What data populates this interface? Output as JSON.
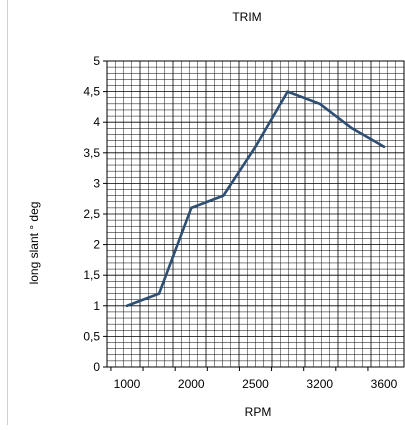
{
  "chart_data": {
    "type": "line",
    "title": "TRIM",
    "xlabel": "RPM",
    "ylabel": "long slant ° deg",
    "x_tick_labels": [
      "1000",
      "2000",
      "2500",
      "3200",
      "3600"
    ],
    "y_tick_labels": [
      "0",
      "0,5",
      "1",
      "1,5",
      "2",
      "2,5",
      "3",
      "3,5",
      "4",
      "4,5",
      "5"
    ],
    "ylim": [
      0,
      5
    ],
    "grid": true,
    "legend": "none",
    "series": [
      {
        "values": [
          1.0,
          1.2,
          2.6,
          2.8,
          3.6,
          4.5,
          4.3,
          3.9,
          3.6
        ]
      }
    ],
    "colors": {
      "line": "#2e4f73",
      "grid": "#000000",
      "axis": "#000000"
    }
  }
}
